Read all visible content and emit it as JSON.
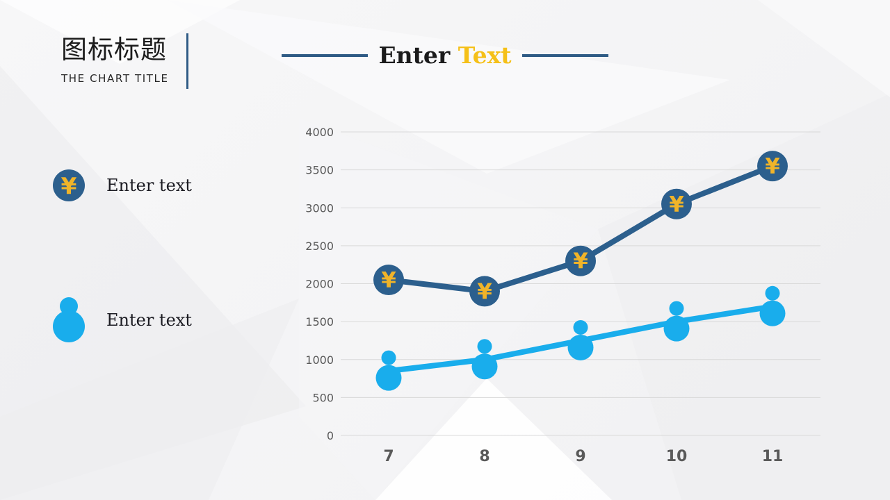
{
  "header": {
    "title": "图标标题",
    "subtitle": "THE CHART TITLE"
  },
  "section_title": {
    "word1": "Enter",
    "word2": "Text"
  },
  "legend": [
    {
      "icon": "yen-coin-icon",
      "label": "Enter text"
    },
    {
      "icon": "person-icon",
      "label": "Enter text"
    }
  ],
  "colors": {
    "accent_dark_blue": "#2c5f8d",
    "accent_light_blue": "#19adec",
    "coin_gold": "#f0b429",
    "title_gold": "#f5c018",
    "rule_blue": "#2f5b85",
    "grid_line": "#d9d9d9",
    "axis_text": "#595959",
    "body_text": "#1b1b22"
  },
  "chart_data": {
    "type": "line",
    "categories": [
      "7",
      "8",
      "9",
      "10",
      "11"
    ],
    "series": [
      {
        "name": "Enter text",
        "marker": "yen-coin",
        "color": "#2c5f8d",
        "values": [
          2050,
          1900,
          2300,
          3050,
          3550
        ]
      },
      {
        "name": "Enter text",
        "marker": "person",
        "color": "#19adec",
        "values": [
          850,
          1000,
          1250,
          1500,
          1700
        ]
      }
    ],
    "title": "",
    "xlabel": "",
    "ylabel": "",
    "ylim": [
      0,
      4000
    ],
    "ytick_step": 500,
    "grid": true,
    "legend_position": "left"
  }
}
